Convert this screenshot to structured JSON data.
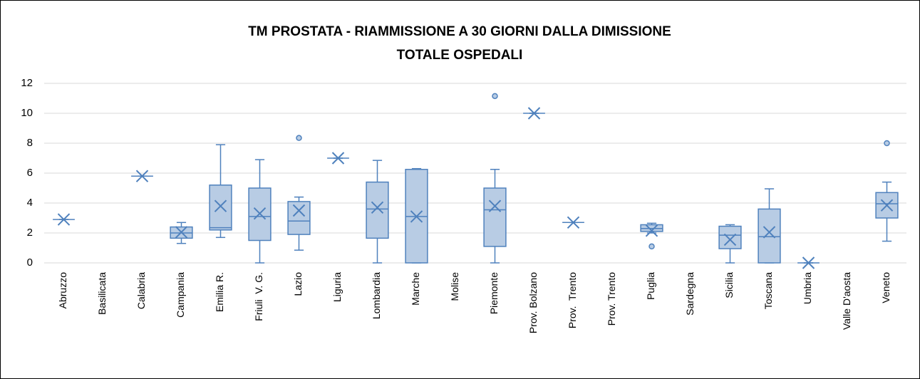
{
  "chart_data": {
    "type": "box",
    "title": "TM PROSTATA - RIAMMISSIONE A 30 GIORNI DALLA DIMISSIONE",
    "subtitle": "TOTALE OSPEDALI",
    "categories": [
      "Abruzzo",
      "Basilicata",
      "Calabria",
      "Campania",
      "Emilia R.",
      "Friuli  V. G.",
      "Lazio",
      "Liguria",
      "Lombardia",
      "Marche",
      "Molise",
      "Piemonte",
      "Prov. Bolzano",
      "Prov.  Trento",
      "Prov. Trento",
      "Puglia",
      "Sardegna",
      "Sicilia",
      "Toscana",
      "Umbria",
      "Valle D'aosta",
      "Veneto"
    ],
    "min": [
      2.9,
      null,
      5.8,
      1.3,
      1.7,
      0,
      0.85,
      7.0,
      0,
      0,
      null,
      0,
      10,
      2.7,
      null,
      2.0,
      null,
      0,
      0,
      0,
      null,
      1.45
    ],
    "q1": [
      2.9,
      null,
      5.8,
      1.65,
      2.2,
      1.5,
      1.9,
      7.0,
      1.65,
      0,
      null,
      1.1,
      10,
      2.7,
      null,
      2.1,
      null,
      0.95,
      0,
      0,
      null,
      3.0
    ],
    "median": [
      2.9,
      null,
      5.8,
      2.0,
      2.35,
      3.1,
      2.8,
      7.0,
      3.6,
      3.1,
      null,
      3.55,
      10,
      2.7,
      null,
      2.3,
      null,
      1.85,
      1.75,
      0,
      null,
      3.95
    ],
    "q3": [
      2.9,
      null,
      5.8,
      2.4,
      5.2,
      5.0,
      4.1,
      7.0,
      5.4,
      6.25,
      null,
      5.0,
      10,
      2.7,
      null,
      2.55,
      null,
      2.45,
      3.6,
      0,
      null,
      4.7
    ],
    "max": [
      2.9,
      null,
      5.8,
      2.7,
      7.9,
      6.9,
      4.4,
      7.0,
      6.85,
      6.3,
      null,
      6.25,
      10,
      2.7,
      null,
      2.65,
      null,
      2.55,
      4.95,
      0,
      null,
      5.4
    ],
    "mean": [
      2.9,
      null,
      5.8,
      2.05,
      3.8,
      3.3,
      3.5,
      7.0,
      3.7,
      3.1,
      null,
      3.8,
      10,
      2.7,
      null,
      2.15,
      null,
      1.55,
      2.05,
      0,
      null,
      3.85
    ],
    "outliers": [
      [],
      [],
      [],
      [],
      [],
      [],
      [
        8.35
      ],
      [],
      [],
      [],
      [],
      [
        11.15
      ],
      [],
      [],
      [],
      [
        1.1
      ],
      [],
      [],
      [],
      [],
      [],
      [
        8.0
      ]
    ],
    "color": "#4f81bd",
    "box_fill": "#b8cce4",
    "ylim": [
      0,
      12
    ],
    "yticks": [
      0,
      2,
      4,
      6,
      8,
      10,
      12
    ],
    "grid": true
  }
}
